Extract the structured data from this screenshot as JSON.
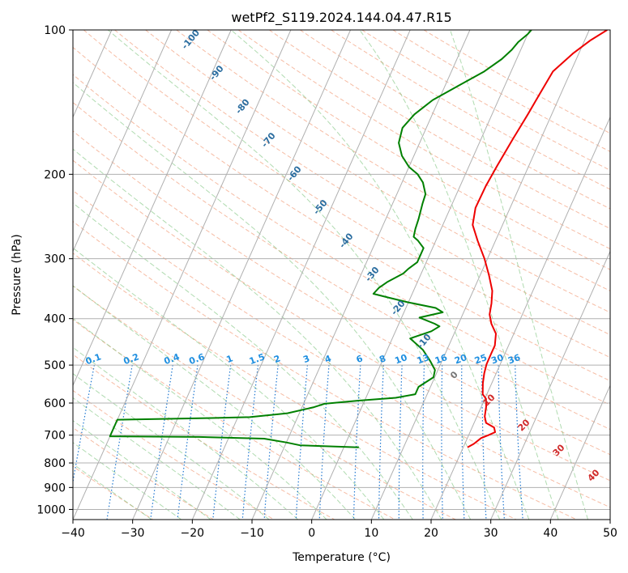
{
  "chart_data": {
    "type": "line",
    "title": "wetPf2_S119.2024.144.04.47.R15",
    "xlabel": "Temperature (°C)",
    "ylabel": "Pressure (hPa)",
    "xlim": [
      -40,
      50
    ],
    "ylim": [
      1050,
      100
    ],
    "y_scale": "log",
    "x_ticks": [
      -40,
      -30,
      -20,
      -10,
      0,
      10,
      20,
      30,
      40,
      50
    ],
    "y_ticks": [
      100,
      200,
      300,
      400,
      500,
      600,
      700,
      800,
      900,
      1000
    ],
    "grid": true,
    "series": [
      {
        "color": "#ee0000",
        "points": [
          [
            20.7,
            742
          ],
          [
            21.5,
            730
          ],
          [
            22.3,
            710
          ],
          [
            23.3,
            700
          ],
          [
            24.2,
            690
          ],
          [
            23.7,
            675
          ],
          [
            22.0,
            660
          ],
          [
            21.3,
            640
          ],
          [
            20.8,
            610
          ],
          [
            20.2,
            588
          ],
          [
            19.3,
            575
          ],
          [
            18.5,
            545
          ],
          [
            18.0,
            520
          ],
          [
            17.7,
            498
          ],
          [
            17.7,
            478
          ],
          [
            17.7,
            455
          ],
          [
            17.0,
            430
          ],
          [
            15.5,
            410
          ],
          [
            14.5,
            392
          ],
          [
            14.0,
            372
          ],
          [
            13.2,
            350
          ],
          [
            11.5,
            325
          ],
          [
            9.5,
            300
          ],
          [
            7.0,
            275
          ],
          [
            5.0,
            255
          ],
          [
            4.2,
            235
          ],
          [
            4.3,
            212
          ],
          [
            4.7,
            192
          ],
          [
            5.3,
            170
          ],
          [
            6.0,
            150
          ],
          [
            6.5,
            135
          ],
          [
            7.0,
            122
          ],
          [
            9.0,
            112
          ],
          [
            11.0,
            105
          ],
          [
            13.0,
            100
          ]
        ]
      },
      {
        "color": "#008000",
        "points": [
          [
            2.5,
            742
          ],
          [
            -7.5,
            735
          ],
          [
            -10.0,
            725
          ],
          [
            -14.0,
            712
          ],
          [
            -25.0,
            706
          ],
          [
            -40.0,
            704
          ],
          [
            -40.0,
            650
          ],
          [
            -25.0,
            645
          ],
          [
            -18.0,
            642
          ],
          [
            -12.0,
            630
          ],
          [
            -8.0,
            612
          ],
          [
            -6.5,
            602
          ],
          [
            -1.0,
            593
          ],
          [
            5.0,
            585
          ],
          [
            8.0,
            575
          ],
          [
            8.0,
            555
          ],
          [
            9.8,
            530
          ],
          [
            9.5,
            512
          ],
          [
            8.0,
            490
          ],
          [
            6.0,
            465
          ],
          [
            3.0,
            440
          ],
          [
            6.0,
            425
          ],
          [
            7.0,
            415
          ],
          [
            6.0,
            410
          ],
          [
            3.0,
            398
          ],
          [
            6.5,
            388
          ],
          [
            5.0,
            380
          ],
          [
            0.0,
            370
          ],
          [
            -3.5,
            362
          ],
          [
            -6.5,
            355
          ],
          [
            -6.0,
            345
          ],
          [
            -5.0,
            335
          ],
          [
            -3.0,
            322
          ],
          [
            -2.5,
            315
          ],
          [
            -1.5,
            305
          ],
          [
            -1.5,
            295
          ],
          [
            -1.5,
            285
          ],
          [
            -3.0,
            275
          ],
          [
            -4.0,
            270
          ],
          [
            -4.3,
            260
          ],
          [
            -4.5,
            248
          ],
          [
            -5.0,
            230
          ],
          [
            -5.2,
            220
          ],
          [
            -6.5,
            208
          ],
          [
            -8.0,
            200
          ],
          [
            -10.0,
            193
          ],
          [
            -12.0,
            183
          ],
          [
            -13.5,
            172
          ],
          [
            -14.0,
            160
          ],
          [
            -13.0,
            150
          ],
          [
            -11.0,
            140
          ],
          [
            -7.5,
            130
          ],
          [
            -4.5,
            122
          ],
          [
            -2.5,
            115
          ],
          [
            -1.5,
            110
          ],
          [
            -1.0,
            106
          ],
          [
            0.0,
            102
          ],
          [
            0.3,
            100
          ]
        ]
      }
    ],
    "dry_adiabat_labels": [
      "-100",
      "-90",
      "-80",
      "-70",
      "-60",
      "-50",
      "-40",
      "-30",
      "-20",
      "-10"
    ],
    "moist_adiabat_labels": [
      "0",
      "10",
      "20",
      "30",
      "40"
    ],
    "mixing_ratio_labels": [
      "0.1",
      "0.2",
      "0.4",
      "0.6",
      "1",
      "1.5",
      "2",
      "3",
      "4",
      "6",
      "8",
      "10",
      "13",
      "16",
      "20",
      "25",
      "30",
      "36"
    ]
  }
}
